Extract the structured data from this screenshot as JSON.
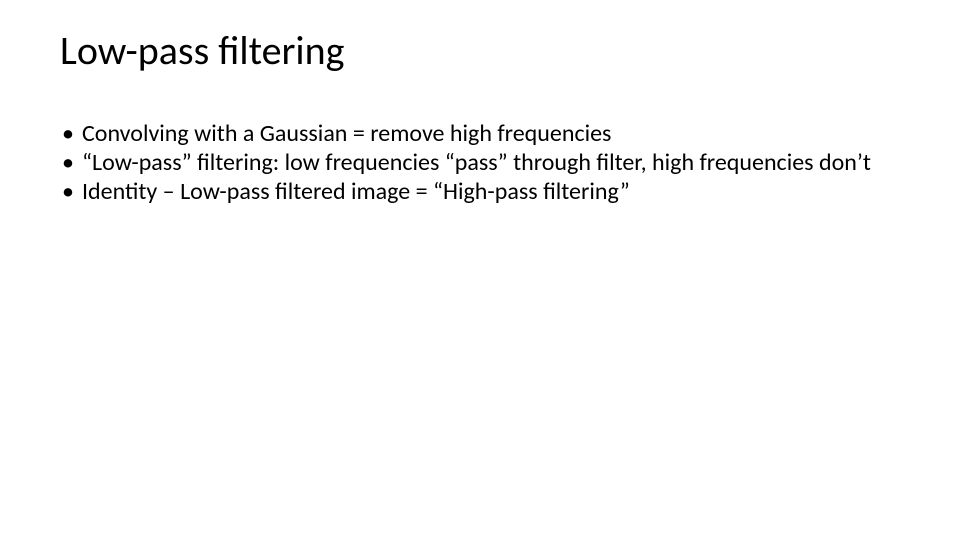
{
  "slide": {
    "title": "Low-pass filtering",
    "title_fontsize": 40,
    "title_color": "#000000",
    "background_color": "#ffffff",
    "bullets": [
      "Convolving with a Gaussian = remove high frequencies",
      "“Low-pass” filtering: low frequencies “pass” through filter, high frequencies don’t",
      "Identity – Low-pass filtered image  = “High-pass filtering”"
    ],
    "bullet_fontsize": 24,
    "bullet_color": "#000000",
    "font_family": "Calibri"
  }
}
